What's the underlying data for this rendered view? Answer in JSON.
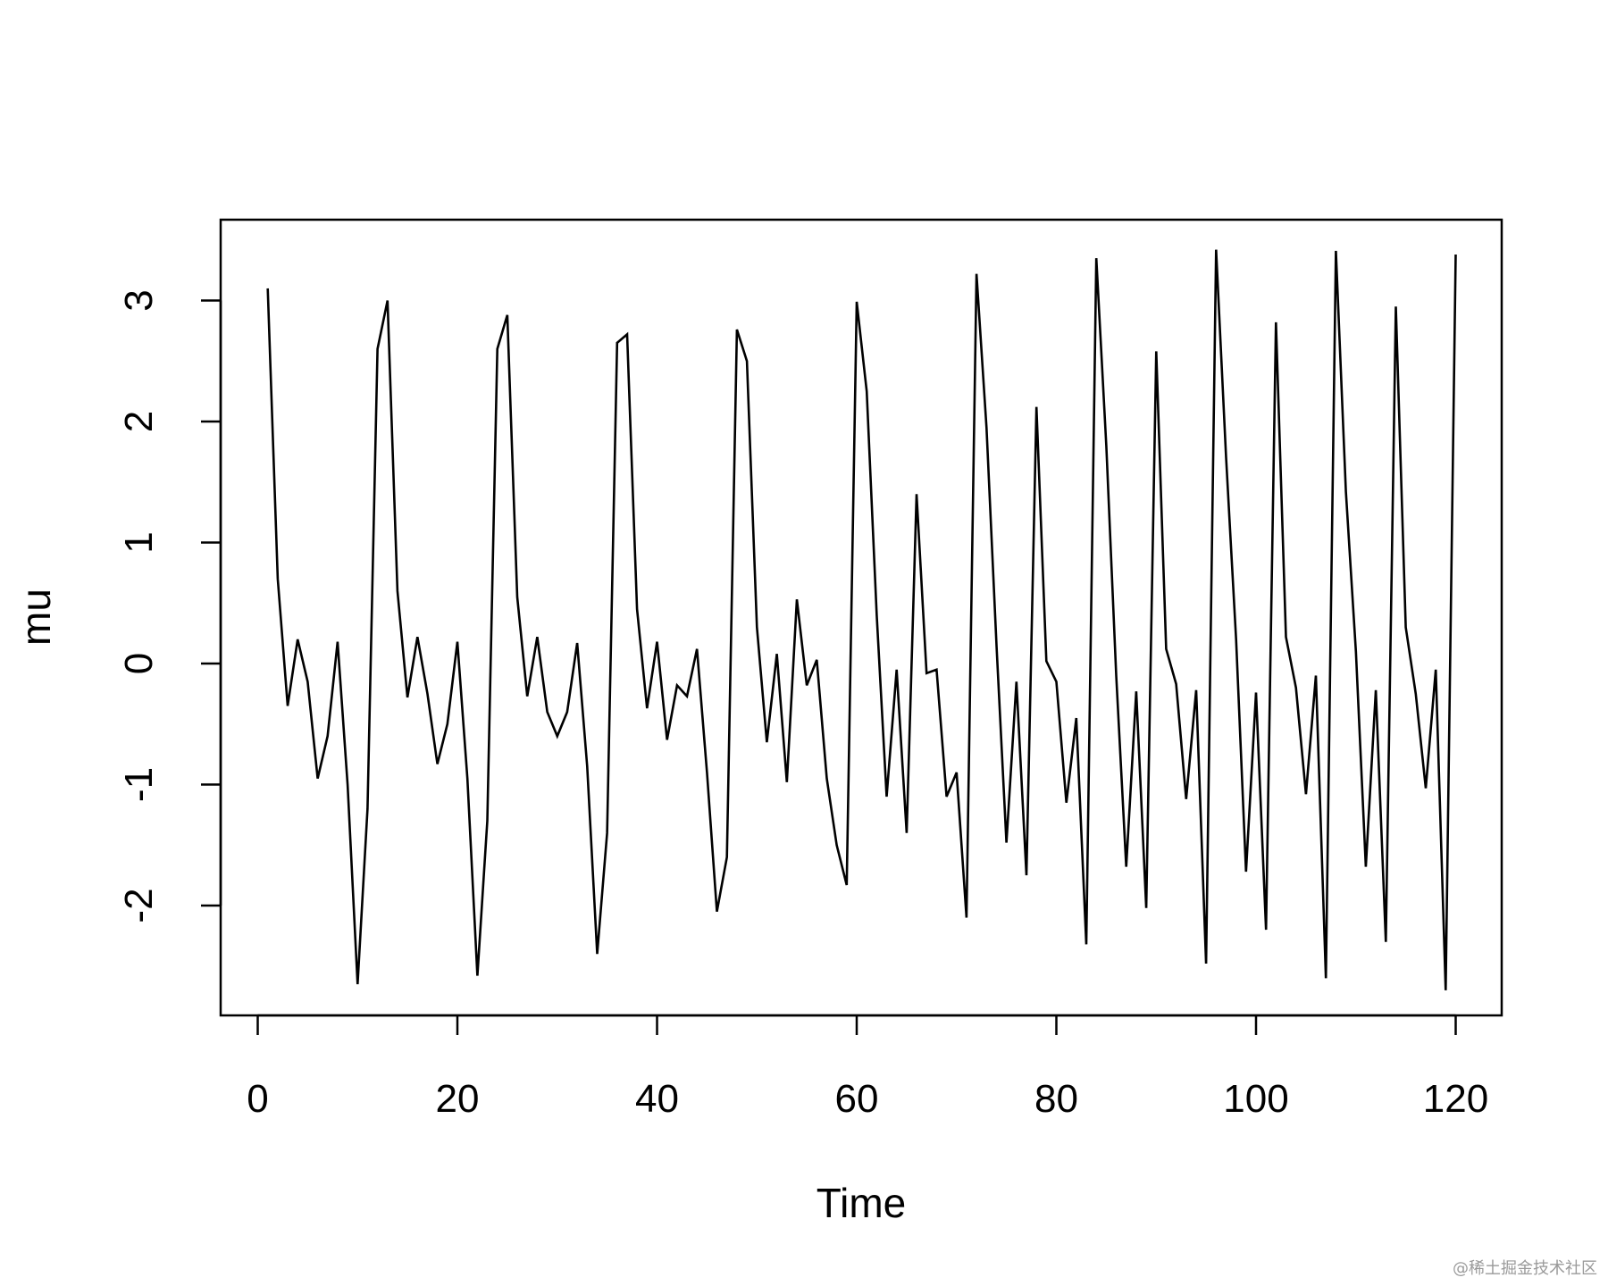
{
  "chart_data": {
    "type": "line",
    "title": "",
    "xlabel": "Time",
    "ylabel": "mu",
    "xlim": [
      1,
      120
    ],
    "ylim": [
      -2.7,
      3.45
    ],
    "x_ticks": [
      0,
      20,
      40,
      60,
      80,
      100,
      120
    ],
    "y_ticks": [
      -2,
      -1,
      0,
      1,
      2,
      3
    ],
    "grid": false,
    "legend": "none",
    "line_color": "#000000",
    "series": [
      {
        "x": [
          1,
          2,
          3,
          4,
          5,
          6,
          7,
          8,
          9,
          10,
          11,
          12,
          13,
          14,
          15,
          16,
          17,
          18,
          19,
          20,
          21,
          22,
          23,
          24,
          25,
          26,
          27,
          28,
          29,
          30,
          31,
          32,
          33,
          34,
          35,
          36,
          37,
          38,
          39,
          40,
          41,
          42,
          43,
          44,
          45,
          46,
          47,
          48,
          49,
          50,
          51,
          52,
          53,
          54,
          55,
          56,
          57,
          58,
          59,
          60,
          61,
          62,
          63,
          64,
          65,
          66,
          67,
          68,
          69,
          70,
          71,
          72,
          73,
          74,
          75,
          76,
          77,
          78,
          79,
          80,
          81,
          82,
          83,
          84,
          85,
          86,
          87,
          88,
          89,
          90,
          91,
          92,
          93,
          94,
          95,
          96,
          97,
          98,
          99,
          100,
          101,
          102,
          103,
          104,
          105,
          106,
          107,
          108,
          109,
          110,
          111,
          112,
          113,
          114,
          115,
          116,
          117,
          118,
          119,
          120
        ],
        "values": [
          3.1,
          0.7,
          -0.35,
          0.2,
          -0.15,
          -0.95,
          -0.6,
          0.18,
          -1.0,
          -2.65,
          -1.2,
          2.6,
          3.0,
          0.6,
          -0.28,
          0.22,
          -0.25,
          -0.83,
          -0.5,
          0.18,
          -0.95,
          -2.58,
          -1.3,
          2.6,
          2.88,
          0.55,
          -0.27,
          0.22,
          -0.4,
          -0.6,
          -0.4,
          0.17,
          -0.85,
          -2.4,
          -1.4,
          2.65,
          2.72,
          0.45,
          -0.37,
          0.18,
          -0.63,
          -0.18,
          -0.27,
          0.12,
          -0.9,
          -2.05,
          -1.6,
          2.76,
          2.5,
          0.3,
          -0.65,
          0.08,
          -0.98,
          0.53,
          -0.18,
          0.03,
          -0.95,
          -1.5,
          -1.83,
          2.99,
          2.25,
          0.4,
          -1.1,
          -0.05,
          -1.4,
          1.4,
          -0.08,
          -0.05,
          -1.1,
          -0.9,
          -2.1,
          3.22,
          1.95,
          0.15,
          -1.48,
          -0.15,
          -1.75,
          2.12,
          0.02,
          -0.15,
          -1.15,
          -0.45,
          -2.32,
          3.35,
          1.8,
          -0.1,
          -1.68,
          -0.23,
          -2.02,
          2.58,
          0.12,
          -0.17,
          -1.12,
          -0.22,
          -2.48,
          3.42,
          1.7,
          0.2,
          -1.72,
          -0.24,
          -2.2,
          2.82,
          0.22,
          -0.2,
          -1.08,
          -0.1,
          -2.6,
          3.41,
          1.42,
          0.1,
          -1.68,
          -0.22,
          -2.3,
          2.95,
          0.3,
          -0.25,
          -1.03,
          -0.05,
          -2.7,
          3.38
        ]
      }
    ]
  },
  "watermark": "@稀土掘金技术社区"
}
